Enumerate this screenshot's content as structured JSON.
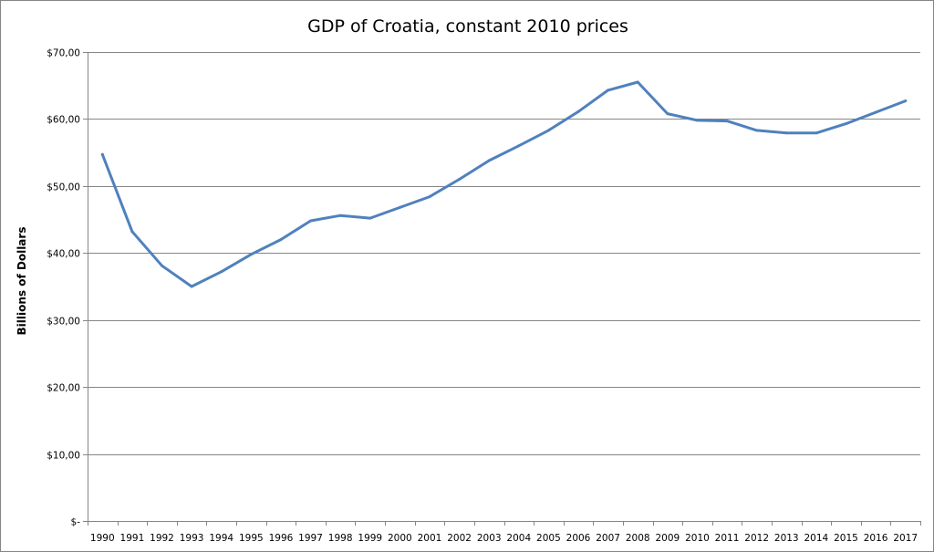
{
  "chart_data": {
    "type": "line",
    "title": "GDP of Croatia, constant 2010 prices",
    "xlabel": "",
    "ylabel": "Billions of Dollars",
    "ylim": [
      0,
      70
    ],
    "yticks": [
      0,
      10,
      20,
      30,
      40,
      50,
      60,
      70
    ],
    "ytick_labels": [
      "$-",
      "$10,00",
      "$20,00",
      "$30,00",
      "$40,00",
      "$50,00",
      "$60,00",
      "$70,00"
    ],
    "grid": true,
    "legend": "none",
    "categories": [
      "1990",
      "1991",
      "1992",
      "1993",
      "1994",
      "1995",
      "1996",
      "1997",
      "1998",
      "1999",
      "2000",
      "2001",
      "2002",
      "2003",
      "2004",
      "2005",
      "2006",
      "2007",
      "2008",
      "2009",
      "2010",
      "2011",
      "2012",
      "2013",
      "2014",
      "2015",
      "2016",
      "2017"
    ],
    "series": [
      {
        "name": "GDP",
        "color": "#4F81BD",
        "values": [
          54.7,
          43.2,
          38.1,
          35.0,
          37.2,
          39.8,
          42.0,
          44.8,
          45.6,
          45.2,
          46.8,
          48.4,
          51.0,
          53.8,
          56.0,
          58.3,
          61.1,
          64.3,
          65.5,
          60.8,
          59.8,
          59.7,
          58.3,
          57.9,
          57.9,
          59.3,
          61.0,
          62.7
        ]
      }
    ]
  },
  "colors": {
    "gridline": "#868686",
    "axis": "#868686",
    "line": "#4F81BD"
  }
}
